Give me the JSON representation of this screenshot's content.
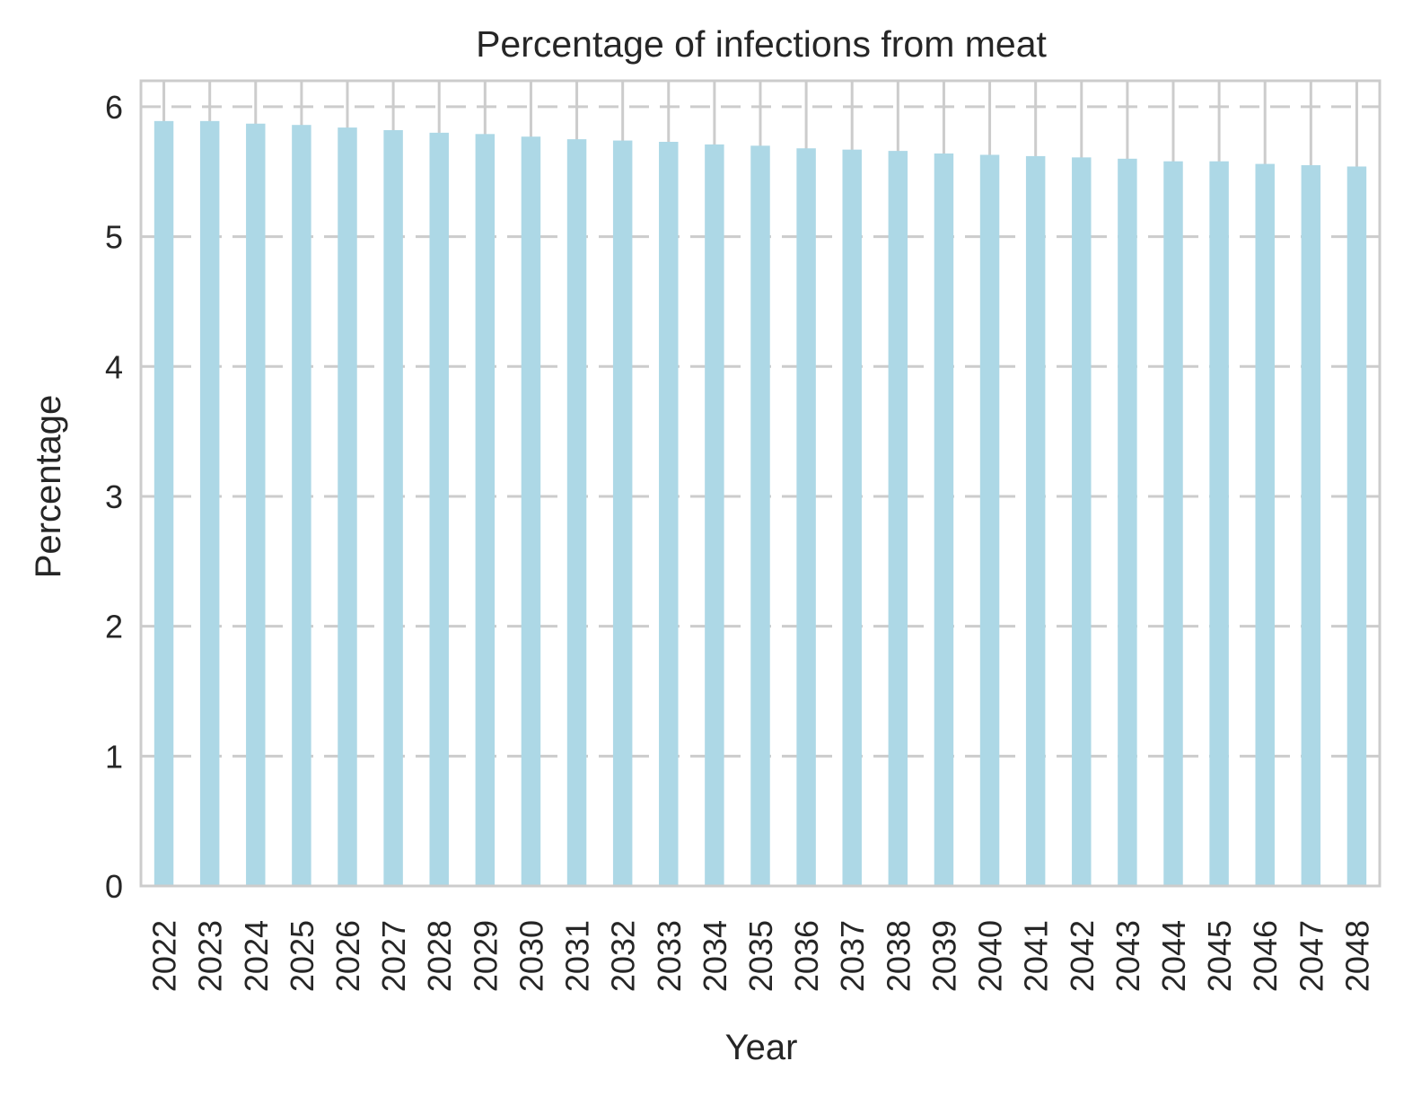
{
  "chart_data": {
    "type": "bar",
    "title": "Percentage of infections from meat",
    "xlabel": "Year",
    "ylabel": "Percentage",
    "categories": [
      "2022",
      "2023",
      "2024",
      "2025",
      "2026",
      "2027",
      "2028",
      "2029",
      "2030",
      "2031",
      "2032",
      "2033",
      "2034",
      "2035",
      "2036",
      "2037",
      "2038",
      "2039",
      "2040",
      "2041",
      "2042",
      "2043",
      "2044",
      "2045",
      "2046",
      "2047",
      "2048"
    ],
    "values": [
      5.89,
      5.89,
      5.87,
      5.86,
      5.84,
      5.82,
      5.8,
      5.79,
      5.77,
      5.75,
      5.74,
      5.73,
      5.71,
      5.7,
      5.68,
      5.67,
      5.66,
      5.64,
      5.63,
      5.62,
      5.61,
      5.6,
      5.58,
      5.58,
      5.56,
      5.55,
      5.54
    ],
    "ylim": [
      0,
      6.2
    ],
    "yticks": [
      0,
      1,
      2,
      3,
      4,
      5,
      6
    ],
    "grid": true,
    "bar_color": "#add8e6",
    "grid_color": "#cccccc",
    "spine_color": "#cccccc"
  }
}
